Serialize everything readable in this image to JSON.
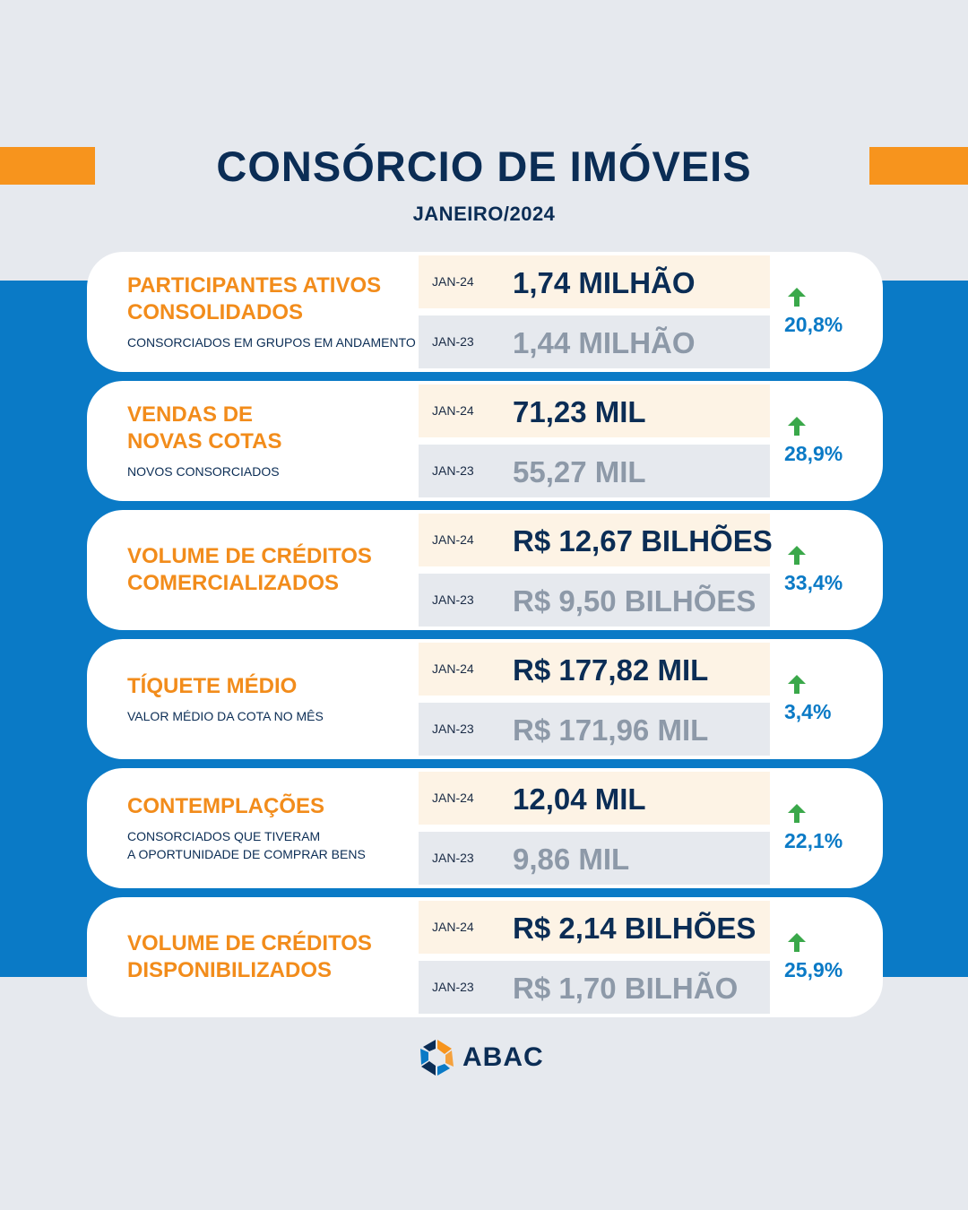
{
  "header": {
    "title": "CONSÓRCIO DE IMÓVEIS",
    "subtitle": "JANEIRO/2024"
  },
  "colors": {
    "accent_orange": "#f7941d",
    "navy": "#0b2d55",
    "blue": "#0a7ac6",
    "up_green": "#3aa84a"
  },
  "metrics": [
    {
      "label_lines": [
        "PARTICIPANTES ATIVOS",
        "CONSOLIDADOS"
      ],
      "description_lines": [
        "CONSORCIADOS EM GRUPOS EM ANDAMENTO"
      ],
      "current": {
        "period": "JAN-24",
        "value": "1,74 MILHÃO"
      },
      "previous": {
        "period": "JAN-23",
        "value": "1,44 MILHÃO"
      },
      "change": "20,8%",
      "trend_icon": "arrow-up-icon"
    },
    {
      "label_lines": [
        "VENDAS DE",
        "NOVAS COTAS"
      ],
      "description_lines": [
        "NOVOS CONSORCIADOS"
      ],
      "current": {
        "period": "JAN-24",
        "value": "71,23 MIL"
      },
      "previous": {
        "period": "JAN-23",
        "value": "55,27 MIL"
      },
      "change": "28,9%",
      "trend_icon": "arrow-up-icon"
    },
    {
      "label_lines": [
        "VOLUME DE CRÉDITOS",
        "COMERCIALIZADOS"
      ],
      "description_lines": [],
      "current": {
        "period": "JAN-24",
        "value": "R$ 12,67 BILHÕES"
      },
      "previous": {
        "period": "JAN-23",
        "value": "R$ 9,50 BILHÕES"
      },
      "change": "33,4%",
      "trend_icon": "arrow-up-icon"
    },
    {
      "label_lines": [
        "TÍQUETE MÉDIO"
      ],
      "description_lines": [
        "VALOR MÉDIO DA COTA NO MÊS"
      ],
      "current": {
        "period": "JAN-24",
        "value": "R$ 177,82 MIL"
      },
      "previous": {
        "period": "JAN-23",
        "value": "R$ 171,96 MIL"
      },
      "change": "3,4%",
      "trend_icon": "arrow-up-icon"
    },
    {
      "label_lines": [
        "CONTEMPLAÇÕES"
      ],
      "description_lines": [
        "CONSORCIADOS QUE TIVERAM",
        "A OPORTUNIDADE DE COMPRAR BENS"
      ],
      "current": {
        "period": "JAN-24",
        "value": "12,04 MIL"
      },
      "previous": {
        "period": "JAN-23",
        "value": "9,86 MIL"
      },
      "change": "22,1%",
      "trend_icon": "arrow-up-icon"
    },
    {
      "label_lines": [
        "VOLUME DE CRÉDITOS",
        "DISPONIBILIZADOS"
      ],
      "description_lines": [],
      "current": {
        "period": "JAN-24",
        "value": "R$ 2,14 BILHÕES"
      },
      "previous": {
        "period": "JAN-23",
        "value": "R$ 1,70 BILHÃO"
      },
      "change": "25,9%",
      "trend_icon": "arrow-up-icon"
    }
  ],
  "footer": {
    "logo_icon": "abac-logo-icon",
    "brand": "ABAC"
  }
}
